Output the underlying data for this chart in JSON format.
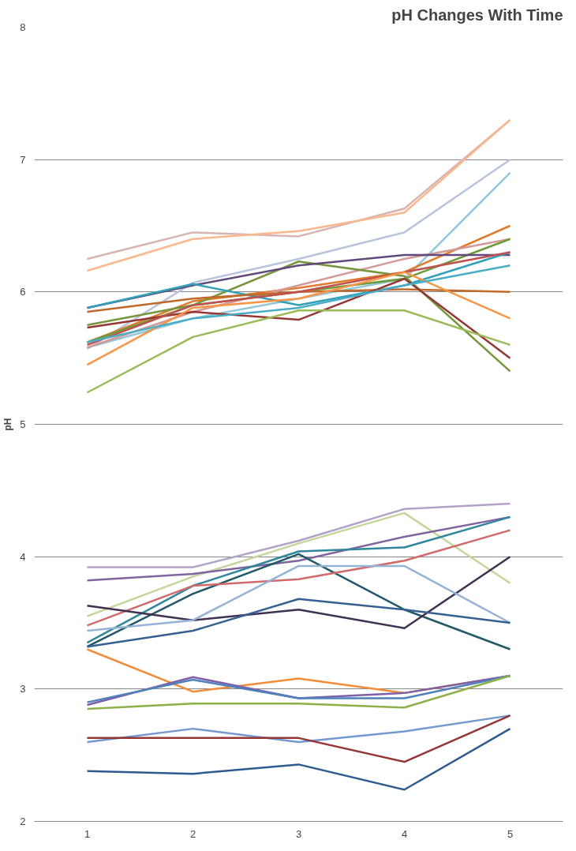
{
  "chart_data": {
    "type": "line",
    "title": "pH Changes With Time",
    "ylabel": "pH",
    "x": [
      1,
      2,
      3,
      4,
      5
    ],
    "xlim": [
      0.5,
      5.5
    ],
    "xticks": [
      1,
      2,
      3,
      4,
      5
    ],
    "ylim": [
      2,
      8
    ],
    "yticks": [
      2,
      3,
      4,
      5,
      6,
      7,
      8
    ],
    "grid": "y",
    "line_style": "solid",
    "series": [
      {
        "color": "#d9b3b0",
        "values": [
          6.25,
          6.45,
          6.42,
          6.63,
          7.3
        ]
      },
      {
        "color": "#f9b78e",
        "values": [
          6.16,
          6.4,
          6.46,
          6.6,
          7.3
        ]
      },
      {
        "color": "#b8c4de",
        "values": [
          5.57,
          6.07,
          6.25,
          6.45,
          7.0
        ]
      },
      {
        "color": "#93c6d8",
        "values": [
          5.58,
          5.8,
          5.95,
          6.1,
          6.9
        ]
      },
      {
        "color": "#e07b2b",
        "values": [
          5.62,
          5.93,
          6.03,
          6.15,
          6.5
        ]
      },
      {
        "color": "#d49a98",
        "values": [
          5.58,
          5.85,
          6.05,
          6.25,
          6.4
        ]
      },
      {
        "color": "#77953d",
        "values": [
          5.75,
          5.9,
          6.23,
          6.12,
          5.4
        ]
      },
      {
        "color": "#6e9a3a",
        "values": [
          5.62,
          5.9,
          6.0,
          6.1,
          6.4
        ]
      },
      {
        "color": "#604a7b",
        "values": [
          5.88,
          6.05,
          6.2,
          6.28,
          6.28
        ]
      },
      {
        "color": "#31a0b8",
        "values": [
          5.88,
          6.06,
          5.9,
          6.05,
          6.3
        ]
      },
      {
        "color": "#c0692a",
        "values": [
          5.85,
          5.95,
          6.0,
          6.02,
          6.0
        ]
      },
      {
        "color": "#953735",
        "values": [
          5.73,
          5.85,
          5.79,
          6.1,
          5.5
        ]
      },
      {
        "color": "#c0504d",
        "values": [
          5.6,
          5.9,
          6.0,
          6.15,
          6.3
        ]
      },
      {
        "color": "#f79646",
        "values": [
          5.45,
          5.88,
          5.95,
          6.15,
          5.8
        ]
      },
      {
        "color": "#9bbb59",
        "values": [
          5.24,
          5.66,
          5.86,
          5.86,
          5.6
        ]
      },
      {
        "color": "#4bacc6",
        "values": [
          5.62,
          5.8,
          5.88,
          6.05,
          6.2
        ]
      },
      {
        "color": "#b3a2c7",
        "values": [
          3.92,
          3.92,
          4.12,
          4.36,
          4.4
        ]
      },
      {
        "color": "#c3d69b",
        "values": [
          3.55,
          3.85,
          4.1,
          4.33,
          3.8
        ]
      },
      {
        "color": "#8064a2",
        "values": [
          3.82,
          3.87,
          3.97,
          4.15,
          4.3
        ]
      },
      {
        "color": "#31859c",
        "values": [
          3.35,
          3.78,
          4.04,
          4.07,
          4.3
        ]
      },
      {
        "color": "#215968",
        "values": [
          3.32,
          3.72,
          4.02,
          3.6,
          3.3
        ]
      },
      {
        "color": "#d16b6b",
        "values": [
          3.48,
          3.78,
          3.83,
          3.97,
          4.2
        ]
      },
      {
        "color": "#403152",
        "values": [
          3.63,
          3.52,
          3.6,
          3.46,
          4.0
        ]
      },
      {
        "color": "#95b3d7",
        "values": [
          3.44,
          3.52,
          3.93,
          3.93,
          3.5
        ]
      },
      {
        "color": "#376092",
        "values": [
          3.32,
          3.44,
          3.68,
          3.6,
          3.5
        ]
      },
      {
        "color": "#f28c38",
        "values": [
          3.3,
          2.98,
          3.08,
          2.97,
          3.1
        ]
      },
      {
        "color": "#7f5fa8",
        "values": [
          2.88,
          3.09,
          2.93,
          2.97,
          3.1
        ]
      },
      {
        "color": "#4f81bd",
        "values": [
          2.9,
          3.07,
          2.93,
          2.93,
          3.1
        ]
      },
      {
        "color": "#8db04a",
        "values": [
          2.85,
          2.89,
          2.89,
          2.86,
          3.1
        ]
      },
      {
        "color": "#7399d0",
        "values": [
          2.6,
          2.7,
          2.6,
          2.68,
          2.8
        ]
      },
      {
        "color": "#943634",
        "values": [
          2.63,
          2.63,
          2.63,
          2.45,
          2.8
        ]
      },
      {
        "color": "#2e5a8f",
        "values": [
          2.38,
          2.36,
          2.43,
          2.24,
          2.7
        ]
      }
    ]
  }
}
